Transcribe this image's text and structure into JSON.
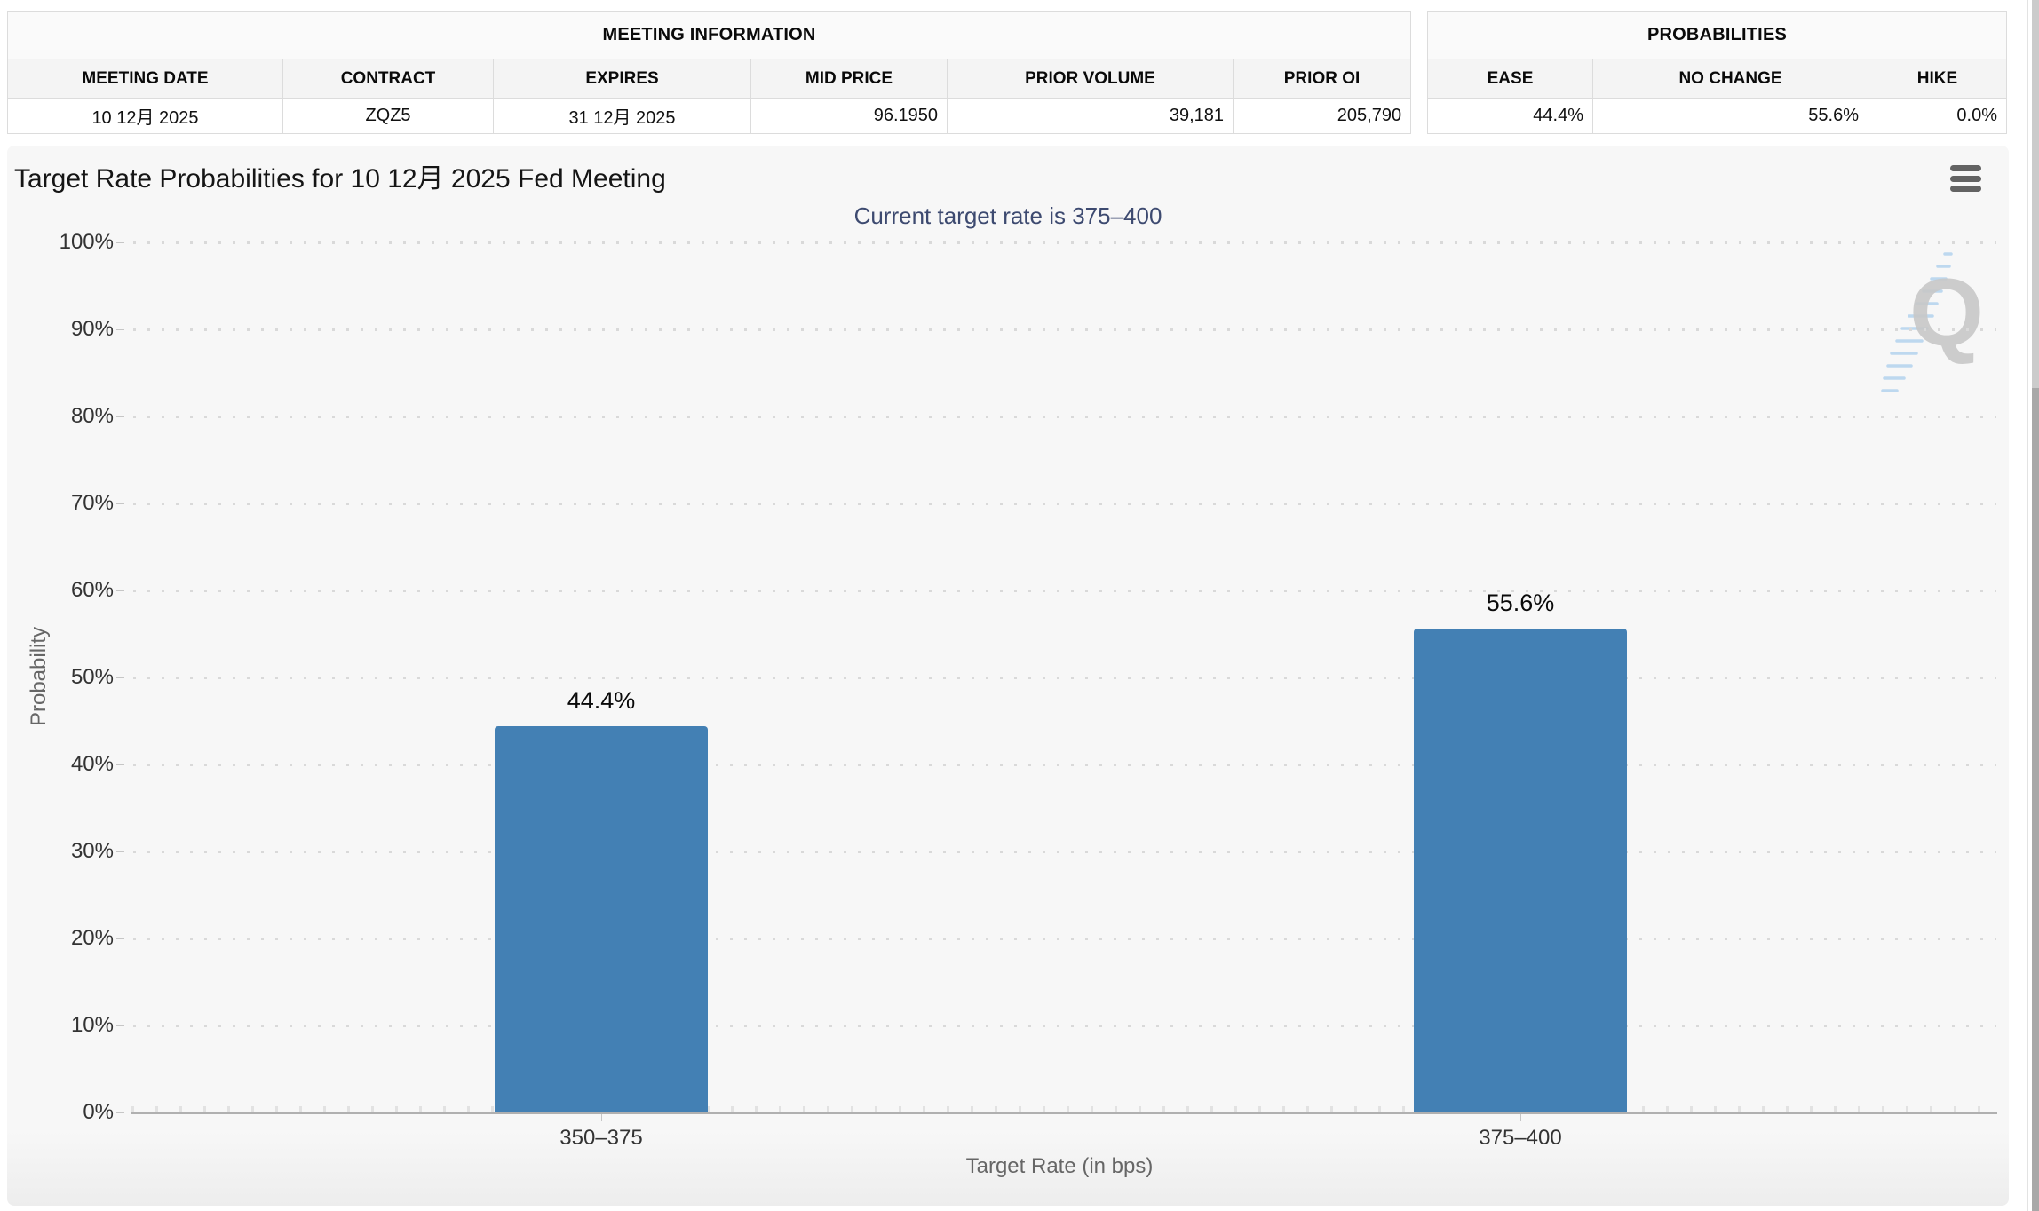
{
  "meeting_info_table": {
    "title": "MEETING INFORMATION",
    "headers": [
      "MEETING DATE",
      "CONTRACT",
      "EXPIRES",
      "MID PRICE",
      "PRIOR VOLUME",
      "PRIOR OI"
    ],
    "row": [
      "10 12月 2025",
      "ZQZ5",
      "31 12月 2025",
      "96.1950",
      "39,181",
      "205,790"
    ]
  },
  "probabilities_table": {
    "title": "PROBABILITIES",
    "headers": [
      "EASE",
      "NO CHANGE",
      "HIKE"
    ],
    "row": [
      "44.4%",
      "55.6%",
      "0.0%"
    ]
  },
  "chart": {
    "title": "Target Rate Probabilities for 10 12月 2025 Fed Meeting",
    "subtitle": "Current target rate is 375–400",
    "subtitle_color": "#3d4a70",
    "watermark": "Q"
  },
  "chart_data": {
    "type": "bar",
    "title": "Target Rate Probabilities for 10 12月 2025 Fed Meeting",
    "subtitle": "Current target rate is 375–400",
    "categories": [
      "350–375",
      "375–400"
    ],
    "values": [
      44.4,
      55.6
    ],
    "bar_labels": [
      "44.4%",
      "55.6%"
    ],
    "xlabel": "Target Rate (in bps)",
    "ylabel": "Probability",
    "ylim": [
      0,
      100
    ],
    "ytick_step": 10,
    "ytick_suffix": "%",
    "grid": "dotted-horizontal",
    "legend": "none",
    "bar_color": "#4380b4"
  }
}
